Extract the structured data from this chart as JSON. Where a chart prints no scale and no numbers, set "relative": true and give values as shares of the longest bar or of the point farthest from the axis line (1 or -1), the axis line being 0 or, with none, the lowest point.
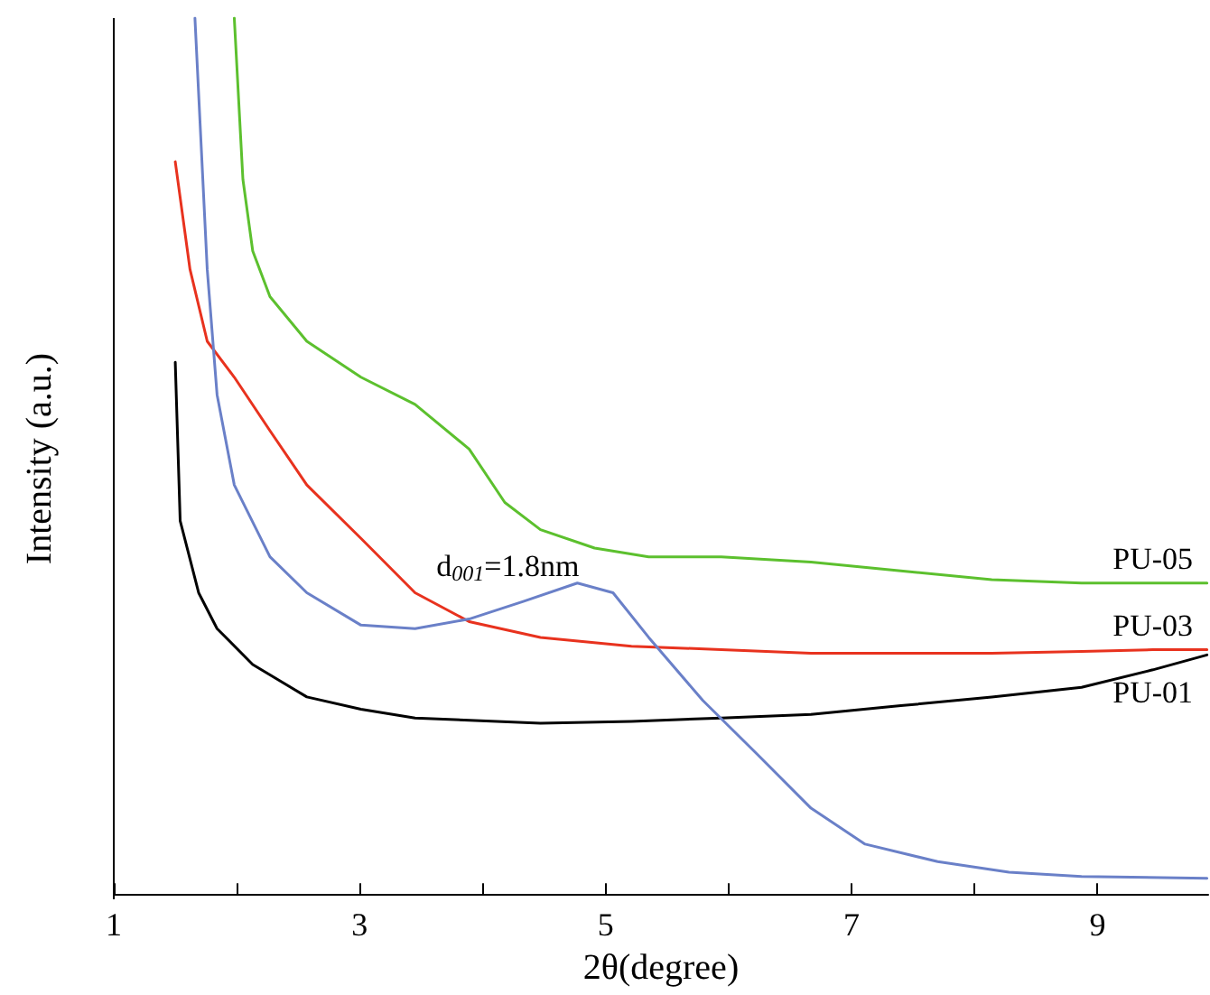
{
  "chart_data": {
    "type": "line",
    "relative": true,
    "xlabel": "2θ(degree)",
    "ylabel": "Intensity (a.u.)",
    "xlim": [
      1,
      9.9
    ],
    "xticks": [
      1,
      {
        "value": 2,
        "label": null
      },
      3,
      {
        "value": 4,
        "label": null
      },
      5,
      {
        "value": 6,
        "label": null
      },
      7,
      {
        "value": 8,
        "label": null
      },
      9
    ],
    "marker": "none",
    "line_style": "solid",
    "grid": false,
    "series": [
      {
        "name": "PU-05",
        "color": "#5cc02e",
        "x": [
          1.98,
          2.05,
          2.13,
          2.27,
          2.57,
          3.01,
          3.45,
          3.89,
          4.18,
          4.47,
          4.91,
          5.35,
          5.94,
          6.67,
          7.4,
          8.14,
          8.87,
          9.45,
          9.89
        ],
        "values": [
          1.0,
          0.816,
          0.734,
          0.682,
          0.631,
          0.59,
          0.559,
          0.508,
          0.447,
          0.416,
          0.395,
          0.385,
          0.385,
          0.379,
          0.369,
          0.359,
          0.355,
          0.355,
          0.355
        ]
      },
      {
        "name": "PU-03",
        "color": "#e8321e",
        "x": [
          1.5,
          1.62,
          1.76,
          1.98,
          2.27,
          2.57,
          3.01,
          3.45,
          3.89,
          4.47,
          5.21,
          5.94,
          6.67,
          7.4,
          8.14,
          8.87,
          9.45,
          9.89
        ],
        "values": [
          0.836,
          0.713,
          0.631,
          0.59,
          0.529,
          0.467,
          0.406,
          0.344,
          0.311,
          0.293,
          0.283,
          0.279,
          0.275,
          0.275,
          0.275,
          0.277,
          0.279,
          0.279
        ]
      },
      {
        "name": "PU-01",
        "color": "#000000",
        "x": [
          1.5,
          1.54,
          1.69,
          1.84,
          2.13,
          2.57,
          3.01,
          3.45,
          4.47,
          5.21,
          5.94,
          6.67,
          7.4,
          8.14,
          8.87,
          9.45,
          9.89
        ],
        "values": [
          0.607,
          0.426,
          0.344,
          0.303,
          0.262,
          0.225,
          0.211,
          0.201,
          0.195,
          0.197,
          0.201,
          0.205,
          0.215,
          0.225,
          0.236,
          0.256,
          0.273
        ]
      },
      {
        "color": "#6a80c8",
        "x": [
          1.66,
          1.76,
          1.84,
          1.98,
          2.27,
          2.57,
          3.01,
          3.45,
          3.89,
          4.33,
          4.77,
          5.06,
          5.35,
          5.79,
          6.23,
          6.67,
          7.11,
          7.7,
          8.28,
          8.87,
          9.89
        ],
        "values": [
          1.0,
          0.713,
          0.57,
          0.467,
          0.385,
          0.344,
          0.307,
          0.303,
          0.314,
          0.334,
          0.355,
          0.344,
          0.293,
          0.221,
          0.16,
          0.098,
          0.057,
          0.037,
          0.025,
          0.02,
          0.018
        ]
      }
    ],
    "annotations": [
      "d$_{001}$=1.8nm"
    ]
  }
}
